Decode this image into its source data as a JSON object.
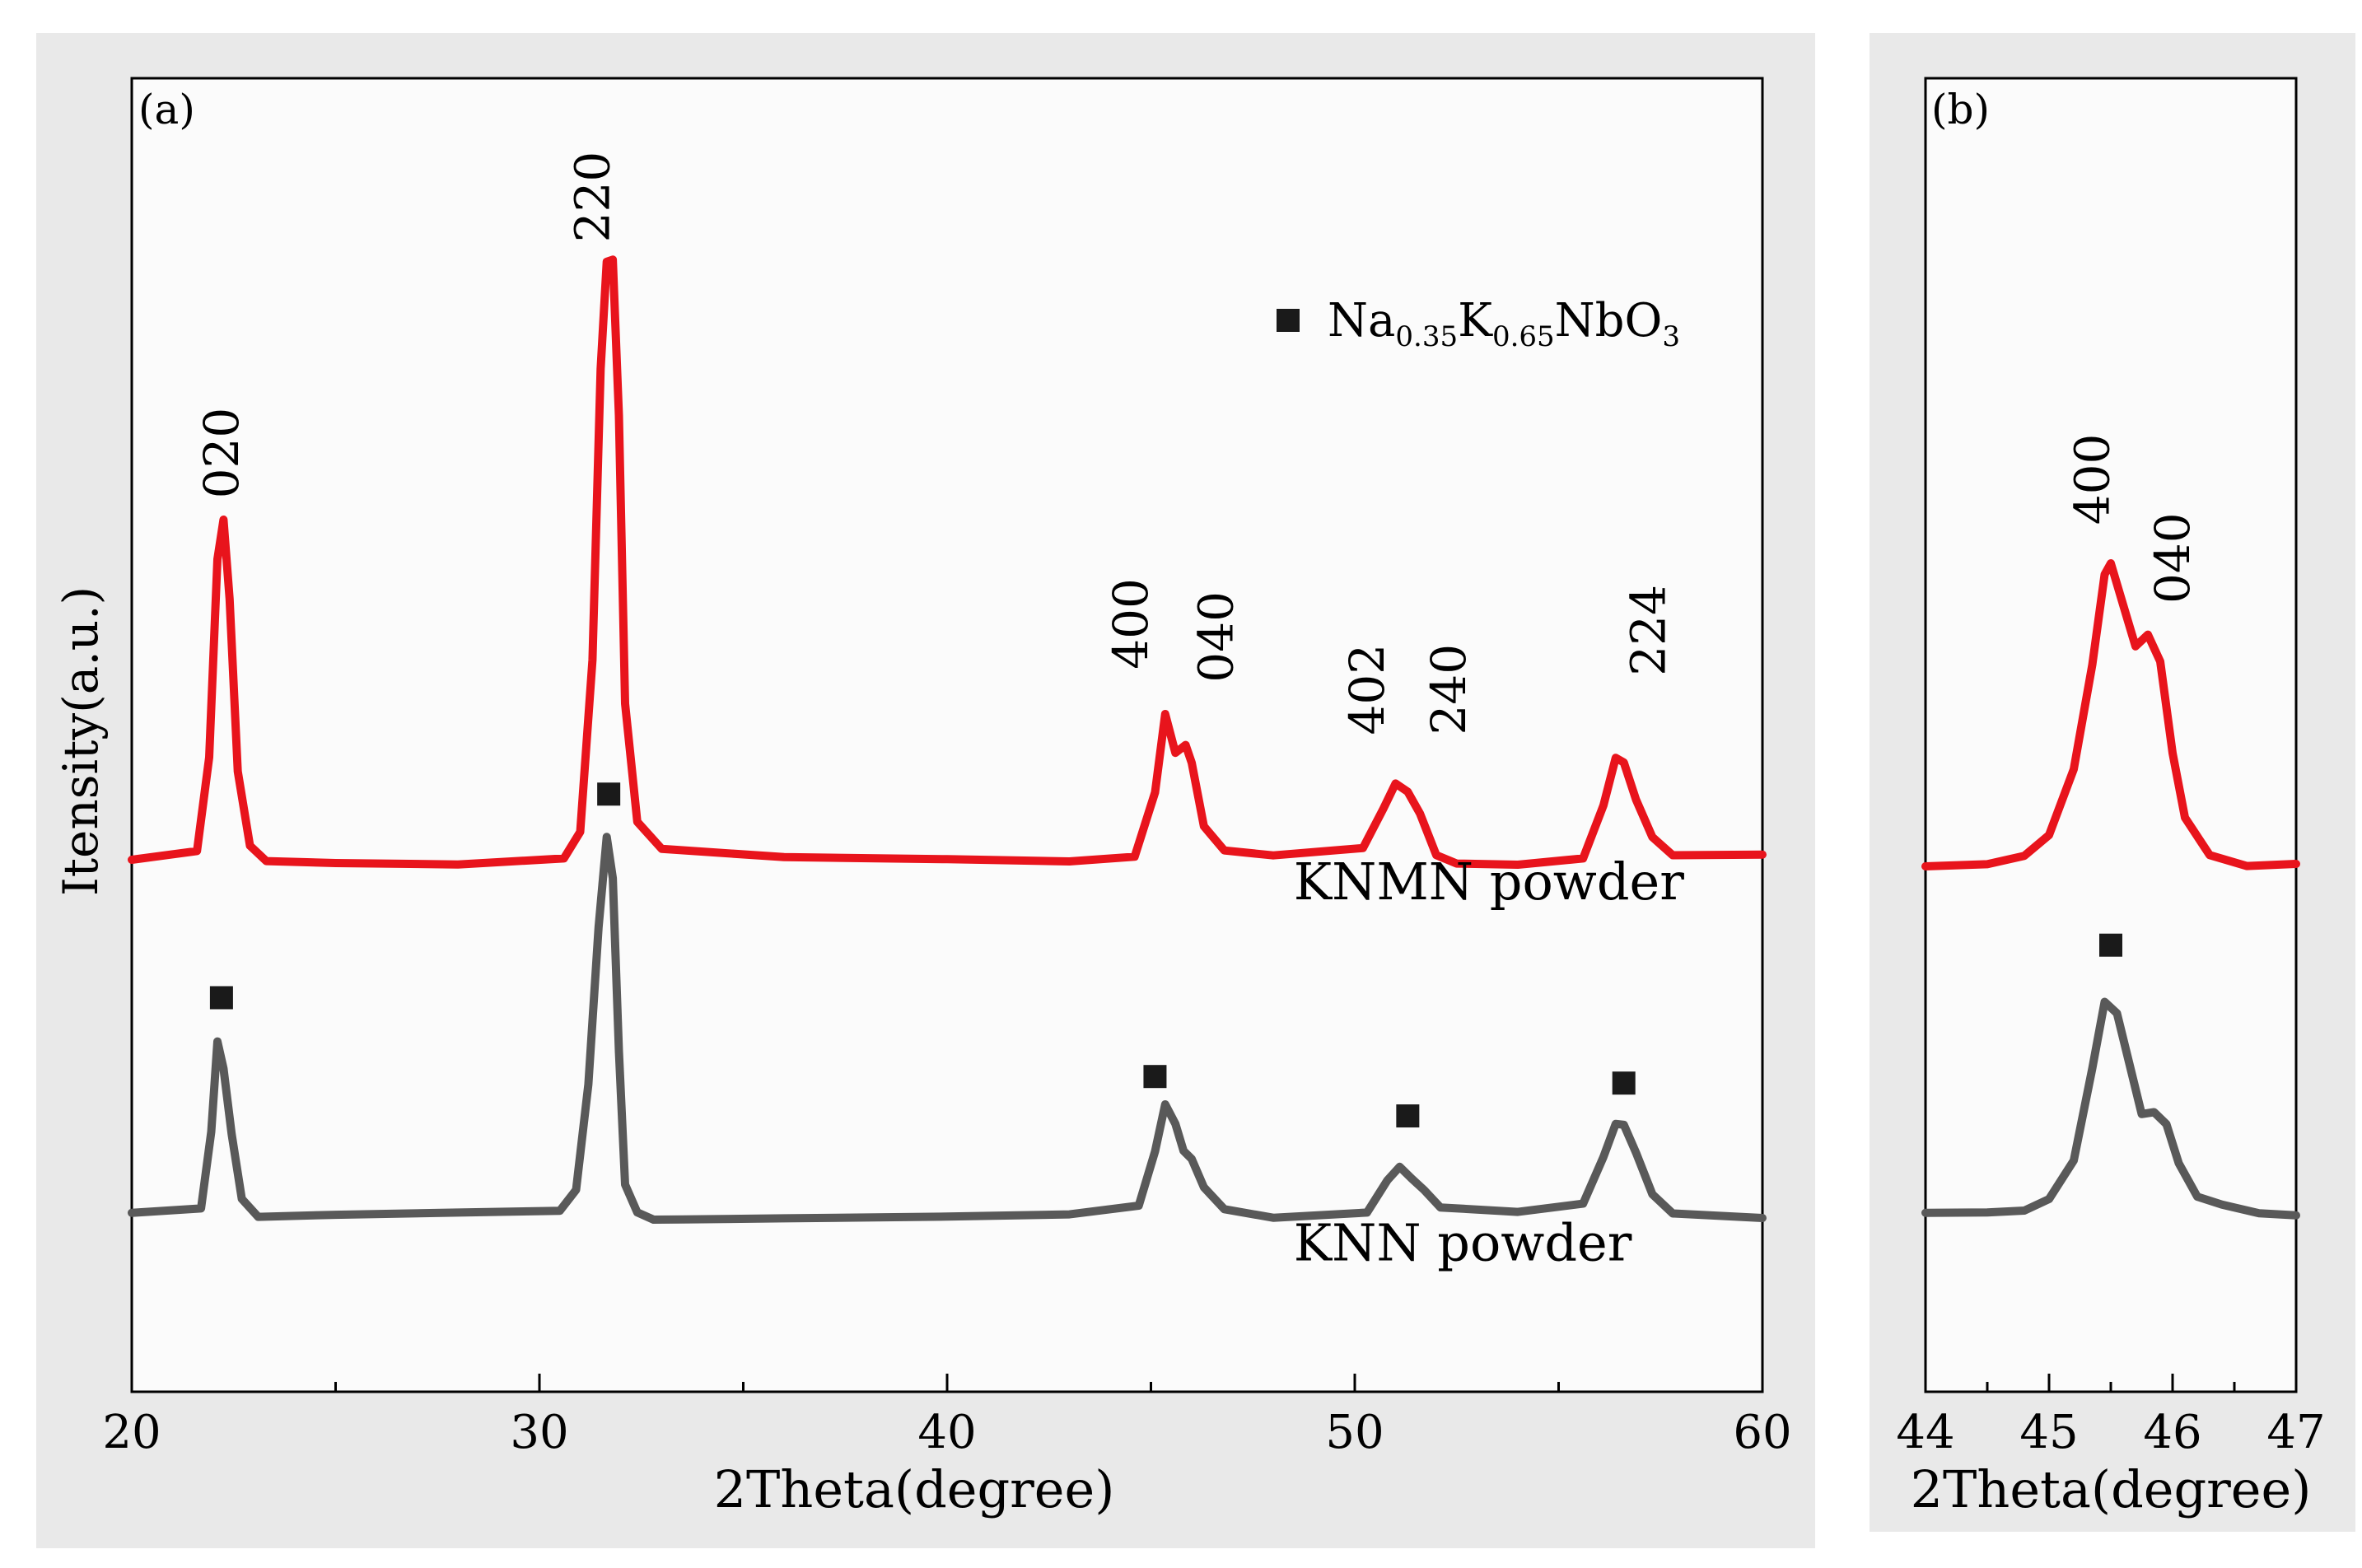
{
  "colors": {
    "knmn": "#e8141c",
    "knn": "#595959",
    "panel_background": "#e9e9e9",
    "marker": "#1a1a1a"
  },
  "chart_data": [
    {
      "type": "line",
      "panel_label": "(a)",
      "xlabel": "2Theta(degree)",
      "ylabel": "Itensity(a.u.)",
      "xlim": [
        20,
        60
      ],
      "xticks": [
        20,
        30,
        40,
        50,
        60
      ],
      "ylim": [
        0,
        1
      ],
      "grid": false,
      "legend": {
        "position": "top-right",
        "marker": "square",
        "label_base": [
          "Na",
          "K",
          "NbO"
        ],
        "label_sub": [
          "0.35",
          "0.65",
          "3"
        ]
      },
      "series": [
        {
          "name": "KNMN powder",
          "color": "#e8141c",
          "x": [
            20,
            21.6,
            21.9,
            22.1,
            22.25,
            22.4,
            22.6,
            22.9,
            23.3,
            25,
            28,
            30.6,
            31.0,
            31.3,
            31.5,
            31.65,
            31.8,
            31.95,
            32.1,
            32.4,
            33,
            36,
            40,
            43,
            44.6,
            45.1,
            45.35,
            45.6,
            45.85,
            46.0,
            46.3,
            46.8,
            48,
            50.2,
            50.7,
            51.0,
            51.3,
            51.6,
            52.0,
            52.5,
            54,
            55.6,
            56.1,
            56.4,
            56.6,
            56.9,
            57.3,
            57.8,
            60
          ],
          "y": [
            0.405,
            0.41,
            0.48,
            0.63,
            0.66,
            0.6,
            0.47,
            0.415,
            0.405,
            0.405,
            0.405,
            0.41,
            0.43,
            0.56,
            0.78,
            0.86,
            0.86,
            0.74,
            0.52,
            0.43,
            0.41,
            0.405,
            0.405,
            0.405,
            0.41,
            0.46,
            0.52,
            0.49,
            0.495,
            0.48,
            0.43,
            0.41,
            0.405,
            0.41,
            0.44,
            0.46,
            0.455,
            0.44,
            0.41,
            0.405,
            0.405,
            0.41,
            0.45,
            0.485,
            0.48,
            0.45,
            0.42,
            0.405,
            0.405
          ]
        },
        {
          "name": "KNN powder",
          "color": "#595959",
          "x": [
            20,
            21.7,
            21.95,
            22.1,
            22.25,
            22.45,
            22.7,
            23.1,
            25,
            28,
            30.5,
            30.9,
            31.2,
            31.45,
            31.65,
            31.8,
            31.95,
            32.1,
            32.4,
            32.8,
            33.5,
            36,
            40,
            43,
            44.7,
            45.1,
            45.35,
            45.6,
            45.8,
            46.0,
            46.3,
            46.8,
            48,
            50.3,
            50.8,
            51.1,
            51.4,
            51.7,
            52.1,
            54,
            55.6,
            56.1,
            56.4,
            56.6,
            56.9,
            57.3,
            57.8,
            60
          ],
          "y": [
            0.135,
            0.14,
            0.2,
            0.27,
            0.25,
            0.2,
            0.15,
            0.135,
            0.135,
            0.135,
            0.135,
            0.15,
            0.23,
            0.35,
            0.42,
            0.39,
            0.26,
            0.16,
            0.14,
            0.135,
            0.135,
            0.135,
            0.135,
            0.135,
            0.14,
            0.18,
            0.215,
            0.2,
            0.18,
            0.175,
            0.155,
            0.14,
            0.135,
            0.14,
            0.165,
            0.175,
            0.165,
            0.155,
            0.14,
            0.135,
            0.14,
            0.175,
            0.2,
            0.2,
            0.18,
            0.15,
            0.137,
            0.135
          ]
        }
      ],
      "peak_labels": [
        {
          "text": "020",
          "x": 22.2,
          "y": 0.68
        },
        {
          "text": "220",
          "x": 31.3,
          "y": 0.875
        },
        {
          "text": "400",
          "x": 44.5,
          "y": 0.55
        },
        {
          "text": "040",
          "x": 46.6,
          "y": 0.54
        },
        {
          "text": "402",
          "x": 50.3,
          "y": 0.5
        },
        {
          "text": "240",
          "x": 52.3,
          "y": 0.5
        },
        {
          "text": "224",
          "x": 57.2,
          "y": 0.545
        }
      ],
      "markers": [
        {
          "x": 22.2,
          "y": 0.3
        },
        {
          "x": 31.7,
          "y": 0.455
        },
        {
          "x": 45.1,
          "y": 0.24
        },
        {
          "x": 51.3,
          "y": 0.21
        },
        {
          "x": 56.6,
          "y": 0.235
        }
      ],
      "annotations": [
        {
          "text": "KNMN powder",
          "x": 48.5,
          "y": 0.375
        },
        {
          "text": "KNN powder",
          "x": 48.5,
          "y": 0.1
        }
      ]
    },
    {
      "type": "line",
      "panel_label": "(b)",
      "xlabel": "2Theta(degree)",
      "ylabel": "",
      "xlim": [
        44,
        47
      ],
      "xticks": [
        44,
        45,
        46,
        47
      ],
      "ylim": [
        0,
        1
      ],
      "grid": false,
      "series": [
        {
          "name": "KNMN powder",
          "color": "#e8141c",
          "x": [
            44,
            44.5,
            44.8,
            45.0,
            45.2,
            45.35,
            45.45,
            45.5,
            45.6,
            45.7,
            45.8,
            45.9,
            46.0,
            46.1,
            46.3,
            46.6,
            47
          ],
          "y": [
            0.4,
            0.4,
            0.405,
            0.42,
            0.47,
            0.55,
            0.62,
            0.63,
            0.6,
            0.57,
            0.58,
            0.56,
            0.49,
            0.44,
            0.41,
            0.4,
            0.4
          ]
        },
        {
          "name": "KNN powder",
          "color": "#595959",
          "x": [
            44,
            44.5,
            44.8,
            45.0,
            45.2,
            45.35,
            45.45,
            45.55,
            45.65,
            45.75,
            45.85,
            45.95,
            46.05,
            46.2,
            46.4,
            46.7,
            47
          ],
          "y": [
            0.135,
            0.137,
            0.14,
            0.15,
            0.18,
            0.25,
            0.3,
            0.29,
            0.25,
            0.21,
            0.21,
            0.2,
            0.17,
            0.145,
            0.14,
            0.135,
            0.135
          ]
        }
      ],
      "peak_labels": [
        {
          "text": "400",
          "x": 45.35,
          "y": 0.66
        },
        {
          "text": "040",
          "x": 46.0,
          "y": 0.6
        }
      ],
      "markers": [
        {
          "x": 45.5,
          "y": 0.34
        }
      ]
    }
  ]
}
